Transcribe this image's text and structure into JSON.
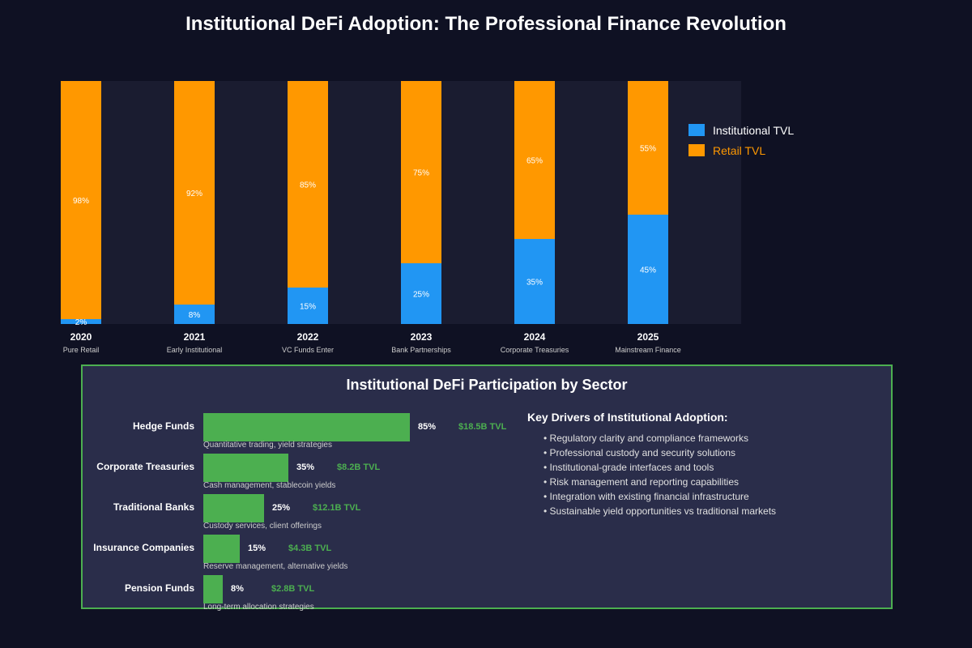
{
  "colors": {
    "institutional": "#2196f3",
    "retail": "#ff9800",
    "sector_bar": "#4caf50",
    "background": "#0f1123",
    "panel": "#2a2d4a"
  },
  "title": "Institutional DeFi Adoption: The Professional Finance Revolution",
  "chart_data": {
    "type": "bar",
    "stacked": true,
    "categories": [
      "2020",
      "2021",
      "2022",
      "2023",
      "2024",
      "2025"
    ],
    "sublabels": [
      "Pure Retail",
      "Early Institutional",
      "VC Funds Enter",
      "Bank Partnerships",
      "Corporate Treasuries",
      "Mainstream Finance"
    ],
    "series": [
      {
        "name": "Institutional TVL",
        "values": [
          2,
          8,
          15,
          25,
          35,
          45
        ],
        "labels": [
          "2%",
          "8%",
          "15%",
          "25%",
          "35%",
          "45%"
        ]
      },
      {
        "name": "Retail TVL",
        "values": [
          98,
          92,
          85,
          75,
          65,
          55
        ],
        "labels": [
          "98%",
          "92%",
          "85%",
          "75%",
          "65%",
          "55%"
        ]
      }
    ],
    "ylim": [
      0,
      100
    ],
    "legend_position": "right"
  },
  "sectors": {
    "title": "Institutional DeFi Participation by Sector",
    "items": [
      {
        "name": "Hedge Funds",
        "value": 85,
        "pct": "85%",
        "tvl": "$18.5B TVL",
        "desc": "Quantitative trading, yield strategies"
      },
      {
        "name": "Corporate Treasuries",
        "value": 35,
        "pct": "35%",
        "tvl": "$8.2B TVL",
        "desc": "Cash management, stablecoin yields"
      },
      {
        "name": "Traditional Banks",
        "value": 25,
        "pct": "25%",
        "tvl": "$12.1B TVL",
        "desc": "Custody services, client offerings"
      },
      {
        "name": "Insurance Companies",
        "value": 15,
        "pct": "15%",
        "tvl": "$4.3B TVL",
        "desc": "Reserve management, alternative yields"
      },
      {
        "name": "Pension Funds",
        "value": 8,
        "pct": "8%",
        "tvl": "$2.8B TVL",
        "desc": "Long-term allocation strategies"
      }
    ]
  },
  "drivers": {
    "title": "Key Drivers of Institutional Adoption:",
    "items": [
      "Regulatory clarity and compliance frameworks",
      "Professional custody and security solutions",
      "Institutional-grade interfaces and tools",
      "Risk management and reporting capabilities",
      "Integration with existing financial infrastructure",
      "Sustainable yield opportunities vs traditional markets"
    ]
  }
}
